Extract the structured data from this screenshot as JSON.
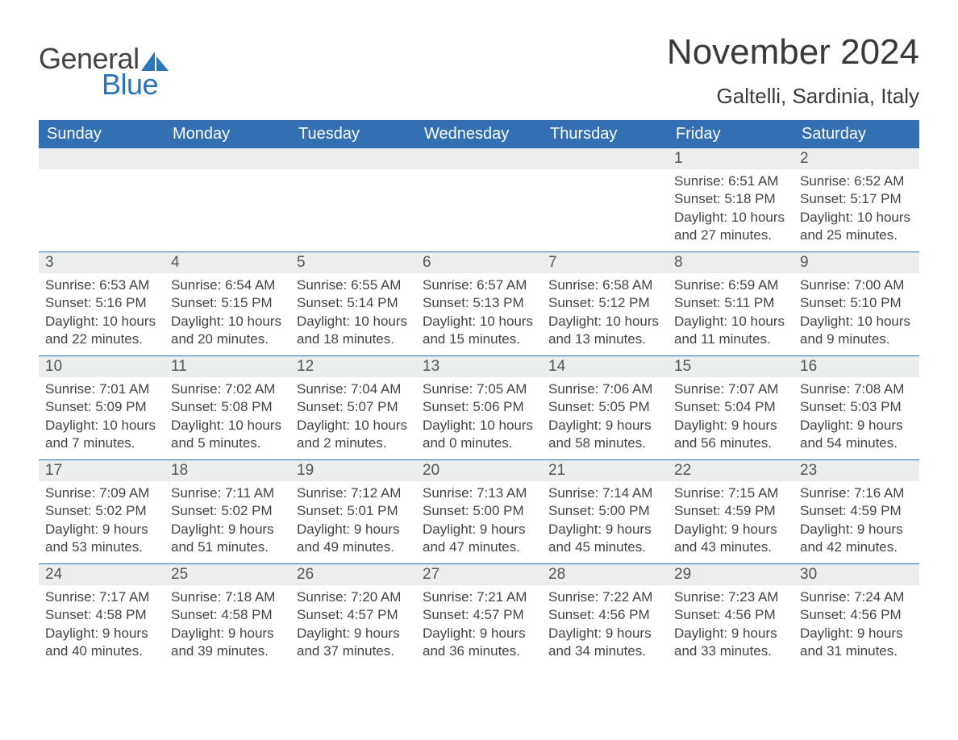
{
  "brand": {
    "word1": "General",
    "word2": "Blue",
    "accent_color": "#2b75bb"
  },
  "title": {
    "month_year": "November 2024",
    "location": "Galtelli, Sardinia, Italy"
  },
  "colors": {
    "header_bg": "#336fb3",
    "header_text": "#ffffff",
    "daynum_bg": "#eceded",
    "body_text": "#444444",
    "page_bg": "#ffffff",
    "row_border": "#336fb3"
  },
  "weekday_headers": [
    "Sunday",
    "Monday",
    "Tuesday",
    "Wednesday",
    "Thursday",
    "Friday",
    "Saturday"
  ],
  "weeks": [
    [
      null,
      null,
      null,
      null,
      null,
      {
        "n": "1",
        "sunrise": "Sunrise: 6:51 AM",
        "sunset": "Sunset: 5:18 PM",
        "d1": "Daylight: 10 hours",
        "d2": "and 27 minutes."
      },
      {
        "n": "2",
        "sunrise": "Sunrise: 6:52 AM",
        "sunset": "Sunset: 5:17 PM",
        "d1": "Daylight: 10 hours",
        "d2": "and 25 minutes."
      }
    ],
    [
      {
        "n": "3",
        "sunrise": "Sunrise: 6:53 AM",
        "sunset": "Sunset: 5:16 PM",
        "d1": "Daylight: 10 hours",
        "d2": "and 22 minutes."
      },
      {
        "n": "4",
        "sunrise": "Sunrise: 6:54 AM",
        "sunset": "Sunset: 5:15 PM",
        "d1": "Daylight: 10 hours",
        "d2": "and 20 minutes."
      },
      {
        "n": "5",
        "sunrise": "Sunrise: 6:55 AM",
        "sunset": "Sunset: 5:14 PM",
        "d1": "Daylight: 10 hours",
        "d2": "and 18 minutes."
      },
      {
        "n": "6",
        "sunrise": "Sunrise: 6:57 AM",
        "sunset": "Sunset: 5:13 PM",
        "d1": "Daylight: 10 hours",
        "d2": "and 15 minutes."
      },
      {
        "n": "7",
        "sunrise": "Sunrise: 6:58 AM",
        "sunset": "Sunset: 5:12 PM",
        "d1": "Daylight: 10 hours",
        "d2": "and 13 minutes."
      },
      {
        "n": "8",
        "sunrise": "Sunrise: 6:59 AM",
        "sunset": "Sunset: 5:11 PM",
        "d1": "Daylight: 10 hours",
        "d2": "and 11 minutes."
      },
      {
        "n": "9",
        "sunrise": "Sunrise: 7:00 AM",
        "sunset": "Sunset: 5:10 PM",
        "d1": "Daylight: 10 hours",
        "d2": "and 9 minutes."
      }
    ],
    [
      {
        "n": "10",
        "sunrise": "Sunrise: 7:01 AM",
        "sunset": "Sunset: 5:09 PM",
        "d1": "Daylight: 10 hours",
        "d2": "and 7 minutes."
      },
      {
        "n": "11",
        "sunrise": "Sunrise: 7:02 AM",
        "sunset": "Sunset: 5:08 PM",
        "d1": "Daylight: 10 hours",
        "d2": "and 5 minutes."
      },
      {
        "n": "12",
        "sunrise": "Sunrise: 7:04 AM",
        "sunset": "Sunset: 5:07 PM",
        "d1": "Daylight: 10 hours",
        "d2": "and 2 minutes."
      },
      {
        "n": "13",
        "sunrise": "Sunrise: 7:05 AM",
        "sunset": "Sunset: 5:06 PM",
        "d1": "Daylight: 10 hours",
        "d2": "and 0 minutes."
      },
      {
        "n": "14",
        "sunrise": "Sunrise: 7:06 AM",
        "sunset": "Sunset: 5:05 PM",
        "d1": "Daylight: 9 hours",
        "d2": "and 58 minutes."
      },
      {
        "n": "15",
        "sunrise": "Sunrise: 7:07 AM",
        "sunset": "Sunset: 5:04 PM",
        "d1": "Daylight: 9 hours",
        "d2": "and 56 minutes."
      },
      {
        "n": "16",
        "sunrise": "Sunrise: 7:08 AM",
        "sunset": "Sunset: 5:03 PM",
        "d1": "Daylight: 9 hours",
        "d2": "and 54 minutes."
      }
    ],
    [
      {
        "n": "17",
        "sunrise": "Sunrise: 7:09 AM",
        "sunset": "Sunset: 5:02 PM",
        "d1": "Daylight: 9 hours",
        "d2": "and 53 minutes."
      },
      {
        "n": "18",
        "sunrise": "Sunrise: 7:11 AM",
        "sunset": "Sunset: 5:02 PM",
        "d1": "Daylight: 9 hours",
        "d2": "and 51 minutes."
      },
      {
        "n": "19",
        "sunrise": "Sunrise: 7:12 AM",
        "sunset": "Sunset: 5:01 PM",
        "d1": "Daylight: 9 hours",
        "d2": "and 49 minutes."
      },
      {
        "n": "20",
        "sunrise": "Sunrise: 7:13 AM",
        "sunset": "Sunset: 5:00 PM",
        "d1": "Daylight: 9 hours",
        "d2": "and 47 minutes."
      },
      {
        "n": "21",
        "sunrise": "Sunrise: 7:14 AM",
        "sunset": "Sunset: 5:00 PM",
        "d1": "Daylight: 9 hours",
        "d2": "and 45 minutes."
      },
      {
        "n": "22",
        "sunrise": "Sunrise: 7:15 AM",
        "sunset": "Sunset: 4:59 PM",
        "d1": "Daylight: 9 hours",
        "d2": "and 43 minutes."
      },
      {
        "n": "23",
        "sunrise": "Sunrise: 7:16 AM",
        "sunset": "Sunset: 4:59 PM",
        "d1": "Daylight: 9 hours",
        "d2": "and 42 minutes."
      }
    ],
    [
      {
        "n": "24",
        "sunrise": "Sunrise: 7:17 AM",
        "sunset": "Sunset: 4:58 PM",
        "d1": "Daylight: 9 hours",
        "d2": "and 40 minutes."
      },
      {
        "n": "25",
        "sunrise": "Sunrise: 7:18 AM",
        "sunset": "Sunset: 4:58 PM",
        "d1": "Daylight: 9 hours",
        "d2": "and 39 minutes."
      },
      {
        "n": "26",
        "sunrise": "Sunrise: 7:20 AM",
        "sunset": "Sunset: 4:57 PM",
        "d1": "Daylight: 9 hours",
        "d2": "and 37 minutes."
      },
      {
        "n": "27",
        "sunrise": "Sunrise: 7:21 AM",
        "sunset": "Sunset: 4:57 PM",
        "d1": "Daylight: 9 hours",
        "d2": "and 36 minutes."
      },
      {
        "n": "28",
        "sunrise": "Sunrise: 7:22 AM",
        "sunset": "Sunset: 4:56 PM",
        "d1": "Daylight: 9 hours",
        "d2": "and 34 minutes."
      },
      {
        "n": "29",
        "sunrise": "Sunrise: 7:23 AM",
        "sunset": "Sunset: 4:56 PM",
        "d1": "Daylight: 9 hours",
        "d2": "and 33 minutes."
      },
      {
        "n": "30",
        "sunrise": "Sunrise: 7:24 AM",
        "sunset": "Sunset: 4:56 PM",
        "d1": "Daylight: 9 hours",
        "d2": "and 31 minutes."
      }
    ]
  ]
}
